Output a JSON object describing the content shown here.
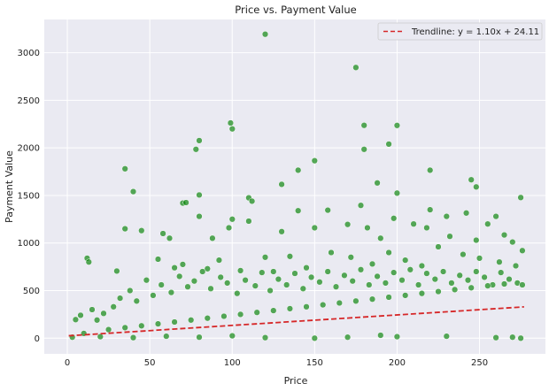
{
  "chart_data": {
    "type": "scatter",
    "title": "Price vs. Payment Value",
    "xlabel": "Price",
    "ylabel": "Payment Value",
    "xlim": [
      -14,
      290
    ],
    "ylim": [
      -165,
      3350
    ],
    "xticks": [
      0,
      50,
      100,
      150,
      200,
      250
    ],
    "yticks": [
      0,
      500,
      1000,
      1500,
      2000,
      2500,
      3000
    ],
    "grid": true,
    "legend_position": "top-right",
    "colors": {
      "background": "#eaeaf2",
      "grid": "#ffffff",
      "points": "#008000",
      "point_edge": "#ffffff",
      "trendline": "#d62728"
    },
    "series": [
      {
        "points": [
          [
            120,
            3195
          ],
          [
            175,
            2845
          ],
          [
            99,
            2262
          ],
          [
            100,
            2200
          ],
          [
            180,
            2237
          ],
          [
            200,
            2236
          ],
          [
            80,
            2077
          ],
          [
            78,
            1985
          ],
          [
            195,
            2040
          ],
          [
            180,
            1985
          ],
          [
            35,
            1780
          ],
          [
            140,
            1765
          ],
          [
            150,
            1865
          ],
          [
            220,
            1765
          ],
          [
            245,
            1665
          ],
          [
            248,
            1590
          ],
          [
            40,
            1540
          ],
          [
            80,
            1505
          ],
          [
            130,
            1617
          ],
          [
            188,
            1632
          ],
          [
            200,
            1525
          ],
          [
            275,
            1478
          ],
          [
            110,
            1475
          ],
          [
            112,
            1440
          ],
          [
            70,
            1420
          ],
          [
            72,
            1425
          ],
          [
            178,
            1395
          ],
          [
            158,
            1345
          ],
          [
            140,
            1340
          ],
          [
            220,
            1350
          ],
          [
            230,
            1280
          ],
          [
            260,
            1280
          ],
          [
            242,
            1315
          ],
          [
            255,
            1200
          ],
          [
            98,
            1160
          ],
          [
            100,
            1250
          ],
          [
            35,
            1150
          ],
          [
            45,
            1130
          ],
          [
            58,
            1100
          ],
          [
            62,
            1050
          ],
          [
            80,
            1280
          ],
          [
            88,
            1050
          ],
          [
            110,
            1230
          ],
          [
            130,
            1120
          ],
          [
            150,
            1160
          ],
          [
            170,
            1195
          ],
          [
            182,
            1160
          ],
          [
            190,
            1050
          ],
          [
            198,
            1260
          ],
          [
            210,
            1200
          ],
          [
            218,
            1160
          ],
          [
            232,
            1070
          ],
          [
            248,
            1030
          ],
          [
            265,
            1085
          ],
          [
            270,
            1010
          ],
          [
            12,
            840
          ],
          [
            13,
            800
          ],
          [
            30,
            705
          ],
          [
            55,
            830
          ],
          [
            65,
            740
          ],
          [
            70,
            775
          ],
          [
            85,
            730
          ],
          [
            92,
            820
          ],
          [
            105,
            710
          ],
          [
            120,
            850
          ],
          [
            125,
            700
          ],
          [
            135,
            860
          ],
          [
            145,
            740
          ],
          [
            160,
            900
          ],
          [
            172,
            850
          ],
          [
            185,
            780
          ],
          [
            195,
            900
          ],
          [
            205,
            820
          ],
          [
            215,
            760
          ],
          [
            225,
            960
          ],
          [
            240,
            880
          ],
          [
            250,
            840
          ],
          [
            262,
            800
          ],
          [
            272,
            760
          ],
          [
            276,
            920
          ],
          [
            5,
            195
          ],
          [
            8,
            240
          ],
          [
            15,
            300
          ],
          [
            18,
            190
          ],
          [
            22,
            260
          ],
          [
            28,
            330
          ],
          [
            32,
            420
          ],
          [
            38,
            500
          ],
          [
            42,
            390
          ],
          [
            48,
            610
          ],
          [
            52,
            450
          ],
          [
            57,
            560
          ],
          [
            63,
            480
          ],
          [
            68,
            650
          ],
          [
            73,
            540
          ],
          [
            77,
            600
          ],
          [
            82,
            700
          ],
          [
            87,
            520
          ],
          [
            93,
            640
          ],
          [
            97,
            580
          ],
          [
            103,
            470
          ],
          [
            108,
            610
          ],
          [
            114,
            550
          ],
          [
            118,
            690
          ],
          [
            123,
            500
          ],
          [
            128,
            620
          ],
          [
            133,
            560
          ],
          [
            138,
            680
          ],
          [
            143,
            520
          ],
          [
            148,
            640
          ],
          [
            153,
            590
          ],
          [
            158,
            700
          ],
          [
            163,
            540
          ],
          [
            168,
            660
          ],
          [
            173,
            600
          ],
          [
            178,
            720
          ],
          [
            183,
            560
          ],
          [
            188,
            650
          ],
          [
            193,
            580
          ],
          [
            198,
            690
          ],
          [
            203,
            610
          ],
          [
            208,
            720
          ],
          [
            213,
            560
          ],
          [
            218,
            680
          ],
          [
            223,
            620
          ],
          [
            228,
            700
          ],
          [
            233,
            580
          ],
          [
            238,
            660
          ],
          [
            243,
            610
          ],
          [
            248,
            700
          ],
          [
            253,
            640
          ],
          [
            258,
            560
          ],
          [
            263,
            690
          ],
          [
            268,
            620
          ],
          [
            273,
            580
          ],
          [
            276,
            560
          ],
          [
            275,
            0
          ],
          [
            150,
            0
          ],
          [
            270,
            10
          ],
          [
            260,
            5
          ],
          [
            230,
            20
          ],
          [
            200,
            15
          ],
          [
            190,
            30
          ],
          [
            170,
            10
          ],
          [
            120,
            5
          ],
          [
            100,
            25
          ],
          [
            80,
            10
          ],
          [
            60,
            20
          ],
          [
            40,
            5
          ],
          [
            20,
            15
          ],
          [
            3,
            10
          ],
          [
            10,
            50
          ],
          [
            25,
            90
          ],
          [
            35,
            110
          ],
          [
            45,
            130
          ],
          [
            55,
            150
          ],
          [
            65,
            170
          ],
          [
            75,
            190
          ],
          [
            85,
            210
          ],
          [
            95,
            230
          ],
          [
            105,
            250
          ],
          [
            115,
            270
          ],
          [
            125,
            290
          ],
          [
            135,
            310
          ],
          [
            145,
            330
          ],
          [
            155,
            350
          ],
          [
            165,
            370
          ],
          [
            175,
            390
          ],
          [
            185,
            410
          ],
          [
            195,
            430
          ],
          [
            205,
            450
          ],
          [
            215,
            470
          ],
          [
            225,
            490
          ],
          [
            235,
            510
          ],
          [
            245,
            530
          ],
          [
            255,
            550
          ],
          [
            265,
            570
          ]
        ]
      },
      {
        "name": "Trendline: y = 1.10x + 24.11",
        "type": "line",
        "style": "dashed",
        "slope": 1.1,
        "intercept": 24.11,
        "x_range": [
          0.85,
          277
        ]
      }
    ]
  },
  "legend": {
    "label": "Trendline: y = 1.10x + 24.11"
  }
}
